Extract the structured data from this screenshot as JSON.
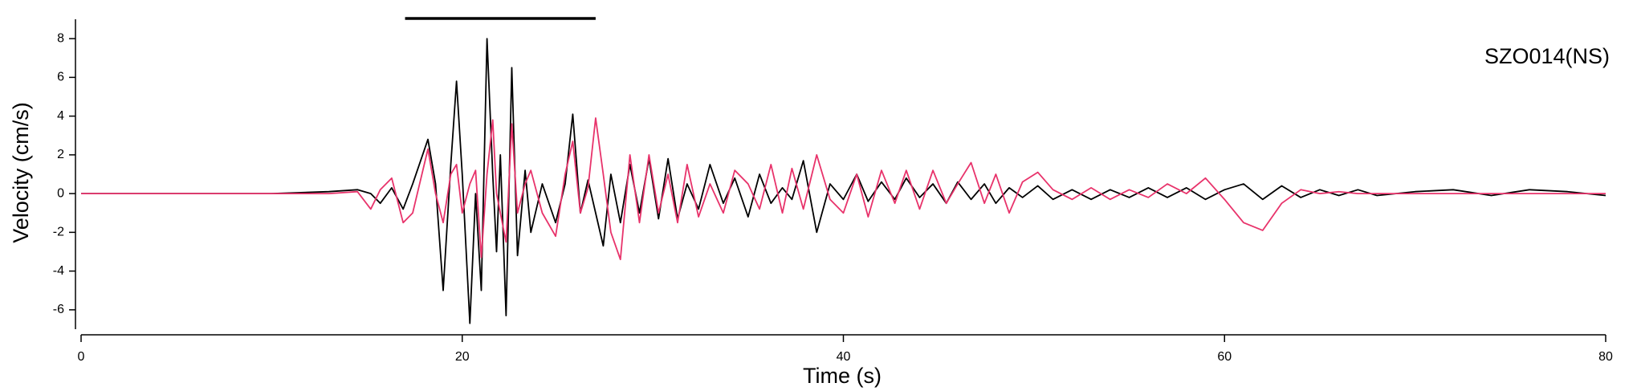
{
  "chart_data": {
    "type": "line",
    "xlabel": "Time (s)",
    "ylabel": "Velocity (cm/s)",
    "annotation": "SZO014(NS)",
    "bar_span": [
      17,
      27
    ],
    "xlim": [
      0,
      80
    ],
    "xticks": [
      0,
      20,
      40,
      60,
      80
    ],
    "ylim": [
      -7,
      9
    ],
    "yticks": [
      -6,
      -4,
      -2,
      0,
      2,
      4,
      6,
      8
    ],
    "x": [
      0,
      5,
      10,
      13,
      14.5,
      15.2,
      15.7,
      16.3,
      16.9,
      17.4,
      18.2,
      18.6,
      19,
      19.4,
      19.7,
      20,
      20.4,
      20.7,
      21,
      21.3,
      21.6,
      21.8,
      22,
      22.3,
      22.6,
      22.9,
      23.3,
      23.6,
      24.2,
      24.9,
      25.4,
      25.8,
      26.2,
      26.6,
      27,
      27.4,
      27.8,
      28.3,
      28.8,
      29.3,
      29.8,
      30.3,
      30.8,
      31.3,
      31.8,
      32.4,
      33,
      33.7,
      34.3,
      35,
      35.6,
      36.2,
      36.8,
      37.3,
      37.9,
      38.6,
      39.3,
      40,
      40.7,
      41.3,
      42,
      42.7,
      43.3,
      44,
      44.7,
      45.4,
      46,
      46.7,
      47.4,
      48,
      48.7,
      49.4,
      50.2,
      51,
      52,
      53,
      54,
      55,
      56,
      57,
      58,
      59,
      60,
      61,
      62,
      63,
      64,
      65,
      66,
      67,
      68,
      70,
      72,
      74,
      76,
      78,
      80
    ],
    "series": [
      {
        "color": "#000000",
        "values": [
          0,
          0,
          0,
          0.1,
          0.2,
          0,
          -0.5,
          0.3,
          -0.8,
          0.5,
          2.8,
          0.5,
          -5,
          1.5,
          5.8,
          1,
          -6.7,
          0,
          -5,
          8,
          1,
          -3,
          2,
          -6.3,
          6.5,
          -3.2,
          1.2,
          -2,
          0.5,
          -1.5,
          0.5,
          4.1,
          -1,
          0.7,
          -1,
          -2.7,
          1,
          -1.5,
          1.5,
          -1,
          1.8,
          -1.3,
          1.8,
          -1.3,
          0.5,
          -0.8,
          1.5,
          -0.5,
          0.8,
          -1.2,
          1,
          -0.5,
          0.3,
          -0.3,
          1.7,
          -2,
          0.5,
          -0.3,
          1,
          -0.4,
          0.6,
          -0.3,
          0.8,
          -0.2,
          0.5,
          -0.5,
          0.6,
          -0.3,
          0.5,
          -0.5,
          0.3,
          -0.2,
          0.4,
          -0.3,
          0.2,
          -0.3,
          0.2,
          -0.2,
          0.3,
          -0.2,
          0.3,
          -0.3,
          0.2,
          0.5,
          -0.3,
          0.4,
          -0.2,
          0.2,
          -0.1,
          0.2,
          -0.1,
          0.1,
          0.2,
          -0.1,
          0.2,
          0.1,
          -0.1
        ]
      },
      {
        "color": "#e8336b",
        "values": [
          0,
          0,
          0,
          0,
          0.1,
          -0.8,
          0.2,
          0.8,
          -1.5,
          -1,
          2.3,
          0,
          -1.5,
          1,
          1.5,
          -1,
          0.5,
          1.2,
          -3.3,
          1,
          3.8,
          0,
          -1,
          -2.5,
          3.6,
          -1,
          0.5,
          1.2,
          -1,
          -2.2,
          1,
          2.7,
          -1,
          0.3,
          3.9,
          1,
          -2,
          -3.4,
          2,
          -1.5,
          2,
          -1,
          1,
          -1.5,
          1.5,
          -1.2,
          0.5,
          -1,
          1.2,
          0.5,
          -0.8,
          1.5,
          -1,
          1.3,
          -0.8,
          2,
          -0.3,
          -1,
          1,
          -1.2,
          1.2,
          -0.5,
          1.2,
          -0.8,
          1.2,
          -0.5,
          0.5,
          1.6,
          -0.5,
          1,
          -1,
          0.6,
          1.1,
          0.2,
          -0.3,
          0.3,
          -0.3,
          0.2,
          -0.2,
          0.5,
          0,
          0.8,
          -0.3,
          -1.5,
          -1.9,
          -0.5,
          0.2,
          0,
          0.1,
          0,
          0,
          0,
          0,
          0,
          0,
          0,
          0
        ]
      }
    ]
  }
}
